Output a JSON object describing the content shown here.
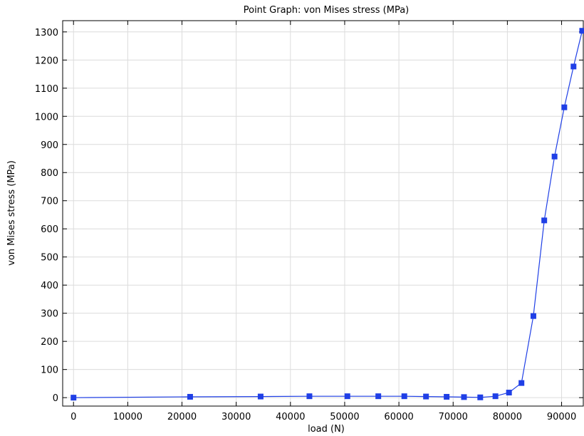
{
  "chart_data": {
    "type": "line",
    "title": "Point Graph: von Mises stress (MPa)",
    "xlabel": "load (N)",
    "ylabel": "von Mises stress (MPa)",
    "xlim": [
      -2000,
      94000
    ],
    "ylim": [
      -30,
      1340
    ],
    "xticks": [
      0,
      10000,
      20000,
      30000,
      40000,
      50000,
      60000,
      70000,
      80000,
      90000
    ],
    "yticks": [
      0,
      100,
      200,
      300,
      400,
      500,
      600,
      700,
      800,
      900,
      1000,
      1100,
      1200,
      1300
    ],
    "grid": true,
    "series": [
      {
        "color": "#1f3fe6",
        "marker": "square",
        "points": [
          [
            0,
            0
          ],
          [
            21500,
            3
          ],
          [
            34500,
            4
          ],
          [
            43500,
            5
          ],
          [
            50500,
            5
          ],
          [
            56200,
            5
          ],
          [
            61000,
            5
          ],
          [
            65000,
            4
          ],
          [
            68800,
            3
          ],
          [
            72000,
            2
          ],
          [
            75000,
            1
          ],
          [
            77800,
            5
          ],
          [
            80300,
            18
          ],
          [
            82600,
            52
          ],
          [
            84800,
            290
          ],
          [
            86800,
            630
          ],
          [
            88700,
            857
          ],
          [
            90500,
            1032
          ],
          [
            92200,
            1177
          ],
          [
            93800,
            1304
          ]
        ]
      }
    ]
  }
}
